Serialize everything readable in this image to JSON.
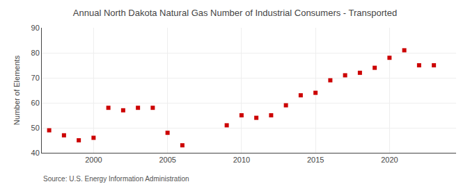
{
  "chart_data": {
    "type": "scatter",
    "title": "Annual North Dakota Natural Gas Number of Industrial Consumers - Transported",
    "ylabel": "Number of Elements",
    "annotations": [
      "Source: U.S. Energy Information Administration"
    ],
    "x": [
      1997,
      1998,
      1999,
      2000,
      2001,
      2002,
      2003,
      2004,
      2005,
      2006,
      2009,
      2010,
      2011,
      2012,
      2013,
      2014,
      2015,
      2016,
      2017,
      2018,
      2019,
      2020,
      2021,
      2022,
      2023
    ],
    "values": [
      49,
      47,
      45,
      46,
      58,
      57,
      58,
      58,
      48,
      43,
      51,
      55,
      54,
      55,
      59,
      63,
      64,
      69,
      71,
      72,
      74,
      78,
      81,
      75,
      75
    ],
    "color": "#cc0000",
    "marker": "square",
    "xlim": [
      1996.5,
      2024.5
    ],
    "ylim": [
      40,
      90
    ],
    "xticks": [
      2000,
      2005,
      2010,
      2015,
      2020
    ],
    "yticks": [
      40,
      50,
      60,
      70,
      80,
      90
    ],
    "grid": true
  }
}
